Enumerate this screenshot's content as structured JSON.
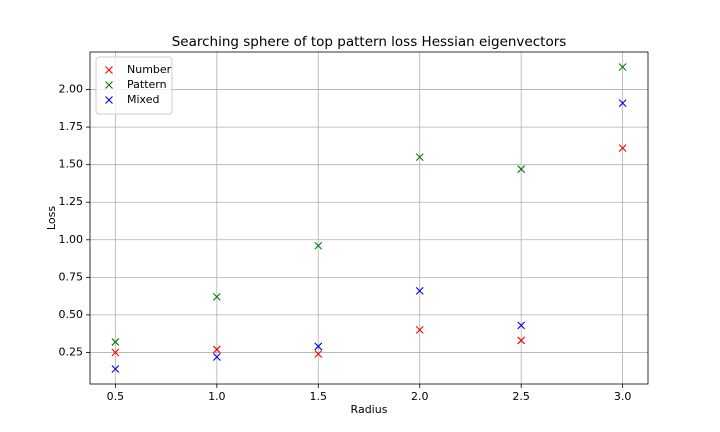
{
  "chart_data": {
    "type": "scatter",
    "title": "Searching sphere of top pattern loss Hessian eigenvectors",
    "x_label": "Radius",
    "y_label": "Loss",
    "x": [
      0.5,
      1.0,
      1.5,
      2.0,
      2.5,
      3.0
    ],
    "series": [
      {
        "name": "Number",
        "color": "#ff0000",
        "values": [
          0.25,
          0.27,
          0.24,
          0.4,
          0.33,
          1.61
        ]
      },
      {
        "name": "Pattern",
        "color": "#008000",
        "values": [
          0.32,
          0.62,
          0.96,
          1.55,
          1.47,
          2.15
        ]
      },
      {
        "name": "Mixed",
        "color": "#0000ff",
        "values": [
          0.14,
          0.22,
          0.29,
          0.66,
          0.43,
          1.91
        ]
      }
    ],
    "xlim": [
      0.375,
      3.125
    ],
    "xticks": [
      0.5,
      {
        "value": 1.0,
        "label": "1.0"
      },
      1.5,
      {
        "value": 2.0,
        "label": "2.0"
      },
      2.5,
      {
        "value": 3.0,
        "label": "3.0"
      }
    ],
    "ylim": [
      0.04,
      2.25
    ],
    "yticks": [
      0.25,
      {
        "value": 0.5,
        "label": "0.50"
      },
      0.75,
      {
        "value": 1.0,
        "label": "1.00"
      },
      1.25,
      {
        "value": 1.5,
        "label": "1.50"
      },
      1.75,
      {
        "value": 2.0,
        "label": "2.00"
      }
    ],
    "grid": true,
    "legend": "upper left",
    "marker": "x"
  }
}
